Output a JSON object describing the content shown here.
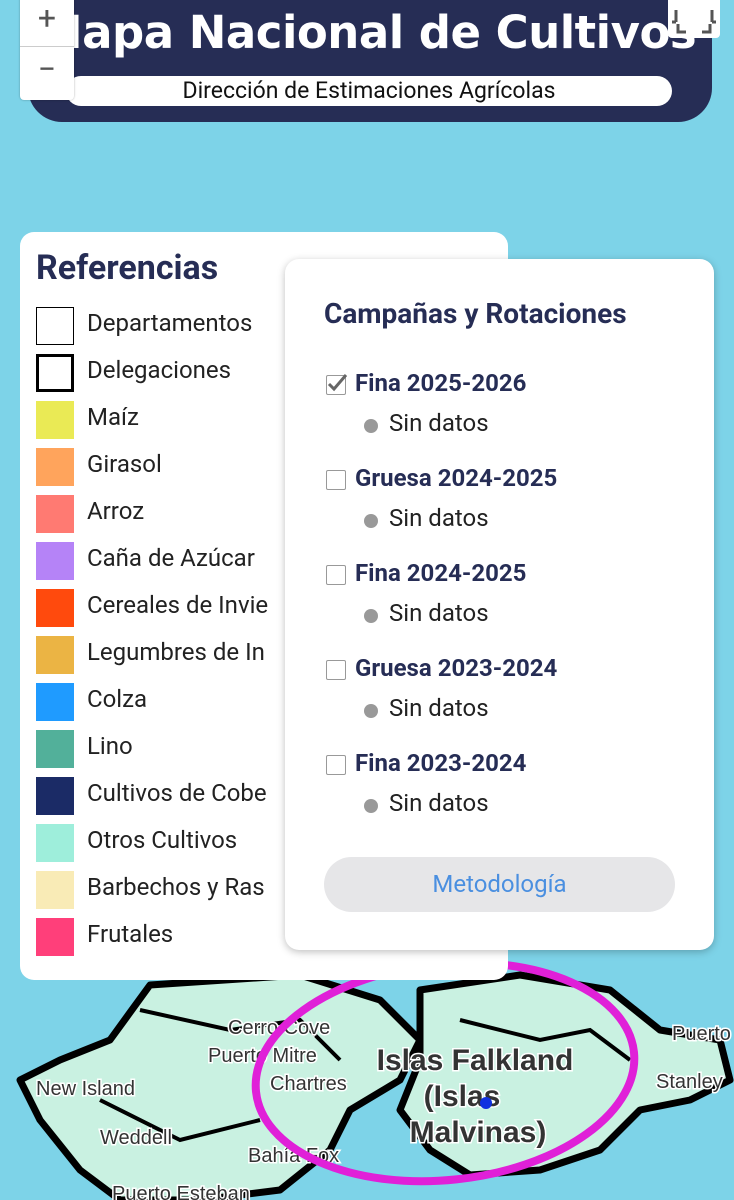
{
  "header": {
    "title": "Mapa Nacional de Cultivos",
    "subtitle": "Dirección de Estimaciones Agrícolas"
  },
  "zoom": {
    "in": "+",
    "out": "−"
  },
  "legend": {
    "title": "Referencias",
    "items": [
      {
        "label": "Departamentos",
        "color": "#ffffff",
        "border": "thin"
      },
      {
        "label": "Delegaciones",
        "color": "#ffffff",
        "border": "thick"
      },
      {
        "label": "Maíz",
        "color": "#eaea55"
      },
      {
        "label": "Girasol",
        "color": "#ffa45c"
      },
      {
        "label": "Arroz",
        "color": "#ff7a72"
      },
      {
        "label": "Caña de Azúcar",
        "color": "#b583f7"
      },
      {
        "label": "Cereales de Invie",
        "color": "#ff4a0d"
      },
      {
        "label": "Legumbres de In",
        "color": "#ebb444"
      },
      {
        "label": "Colza",
        "color": "#1f9bff"
      },
      {
        "label": "Lino",
        "color": "#52b09a"
      },
      {
        "label": "Cultivos de Cobe",
        "color": "#1b2b66"
      },
      {
        "label": "Otros Cultivos",
        "color": "#9eeedb"
      },
      {
        "label": "Barbechos y Ras",
        "color": "#f9ebb6"
      },
      {
        "label": "Frutales",
        "color": "#ff3f7a"
      }
    ]
  },
  "campaigns": {
    "title": "Campañas y Rotaciones",
    "items": [
      {
        "label": "Fina 2025-2026",
        "checked": true,
        "status": "Sin datos"
      },
      {
        "label": "Gruesa 2024-2025",
        "checked": false,
        "status": "Sin datos"
      },
      {
        "label": "Fina 2024-2025",
        "checked": false,
        "status": "Sin datos"
      },
      {
        "label": "Gruesa 2023-2024",
        "checked": false,
        "status": "Sin datos"
      },
      {
        "label": "Fina 2023-2024",
        "checked": false,
        "status": "Sin datos"
      }
    ],
    "button": "Metodología"
  },
  "map": {
    "labels": [
      "Cerro Cove",
      "Puerto Mitre",
      "Chartres",
      "New Island",
      "Weddell",
      "Bahía Fox",
      "Puerto Esteban",
      "Puerto Soledad",
      "Stanley"
    ],
    "region": [
      "Islas Falkland",
      "(Islas",
      "Malvinas)"
    ]
  }
}
